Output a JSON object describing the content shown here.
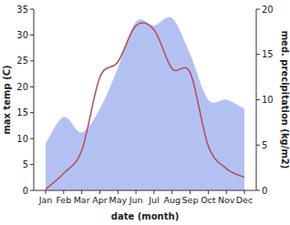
{
  "chart_data": {
    "type": "line",
    "x_label": "date (month)",
    "y_label": "max temp (C)",
    "y2_label": "med. precipitation (kg/m2)",
    "categories": [
      "Jan",
      "Feb",
      "Mar",
      "Apr",
      "May",
      "Jun",
      "Jul",
      "Aug",
      "Sep",
      "Oct",
      "Nov",
      "Dec"
    ],
    "ylim": [
      0,
      35
    ],
    "yticks": [
      0,
      5,
      10,
      15,
      20,
      25,
      30,
      35
    ],
    "y2lim": [
      0,
      20
    ],
    "y2ticks": [
      0,
      5,
      10,
      15,
      20
    ],
    "series": [
      {
        "type": "area",
        "axis": "y2",
        "color": "#b3c1f2",
        "values": [
          5.2,
          8.1,
          6.4,
          9.0,
          13.5,
          18.6,
          18.2,
          19.0,
          15.0,
          10.0,
          10.0,
          9.0
        ]
      },
      {
        "type": "line",
        "color": "#b5525c",
        "values": [
          0.2,
          3.3,
          7.7,
          21.8,
          24.8,
          31.8,
          31.0,
          23.5,
          22.7,
          8.6,
          4.2,
          2.5
        ]
      }
    ]
  }
}
